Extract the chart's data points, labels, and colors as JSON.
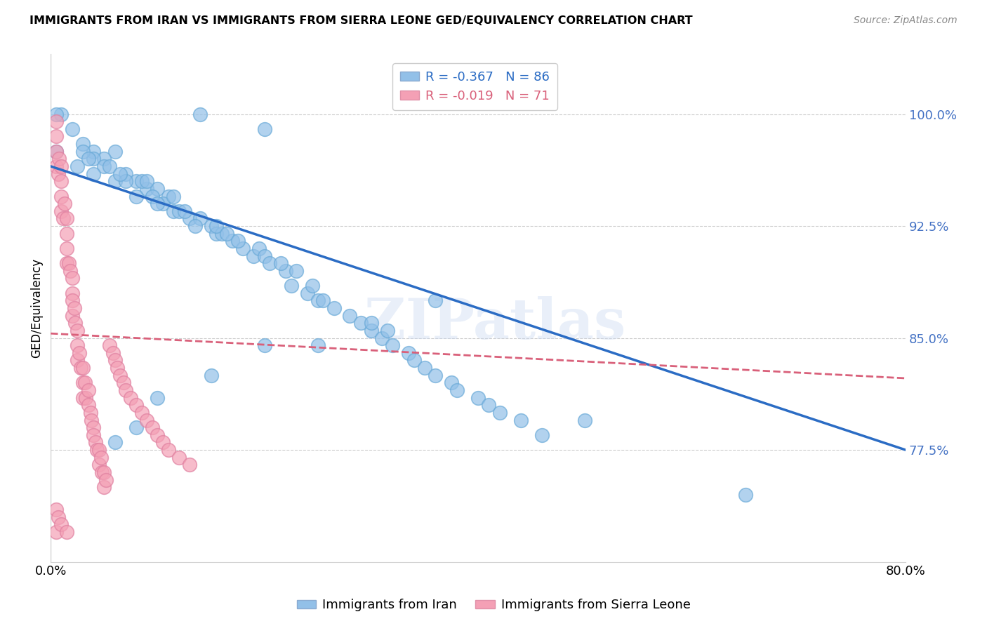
{
  "title": "IMMIGRANTS FROM IRAN VS IMMIGRANTS FROM SIERRA LEONE GED/EQUIVALENCY CORRELATION CHART",
  "source": "Source: ZipAtlas.com",
  "ylabel": "GED/Equivalency",
  "yticks": [
    0.775,
    0.85,
    0.925,
    1.0
  ],
  "ytick_labels": [
    "77.5%",
    "85.0%",
    "92.5%",
    "100.0%"
  ],
  "xlim": [
    0.0,
    0.8
  ],
  "ylim": [
    0.7,
    1.04
  ],
  "iran_R": "-0.367",
  "iran_N": "86",
  "sierra_R": "-0.019",
  "sierra_N": "71",
  "iran_color": "#92C0E8",
  "sierra_color": "#F4A0B5",
  "iran_line_color": "#2B6CC4",
  "sierra_line_color": "#D9607A",
  "watermark": "ZIPatlas",
  "iran_line_x0": 0.0,
  "iran_line_y0": 0.965,
  "iran_line_x1": 0.8,
  "iran_line_y1": 0.775,
  "sierra_line_x0": 0.0,
  "sierra_line_y0": 0.853,
  "sierra_line_x1": 0.8,
  "sierra_line_y1": 0.823,
  "iran_scatter_x": [
    0.01,
    0.005,
    0.14,
    0.2,
    0.005,
    0.02,
    0.04,
    0.03,
    0.06,
    0.05,
    0.04,
    0.03,
    0.025,
    0.05,
    0.04,
    0.035,
    0.07,
    0.06,
    0.055,
    0.08,
    0.07,
    0.065,
    0.09,
    0.085,
    0.08,
    0.1,
    0.095,
    0.09,
    0.11,
    0.105,
    0.1,
    0.115,
    0.12,
    0.115,
    0.13,
    0.125,
    0.14,
    0.135,
    0.15,
    0.155,
    0.16,
    0.155,
    0.17,
    0.165,
    0.18,
    0.175,
    0.19,
    0.195,
    0.2,
    0.205,
    0.22,
    0.215,
    0.23,
    0.225,
    0.24,
    0.245,
    0.25,
    0.255,
    0.265,
    0.28,
    0.29,
    0.3,
    0.31,
    0.315,
    0.32,
    0.335,
    0.34,
    0.35,
    0.36,
    0.375,
    0.38,
    0.4,
    0.41,
    0.42,
    0.44,
    0.46,
    0.36,
    0.3,
    0.25,
    0.2,
    0.15,
    0.1,
    0.08,
    0.06,
    0.65,
    0.5
  ],
  "iran_scatter_y": [
    1.0,
    1.0,
    1.0,
    0.99,
    0.975,
    0.99,
    0.975,
    0.98,
    0.975,
    0.97,
    0.97,
    0.975,
    0.965,
    0.965,
    0.96,
    0.97,
    0.96,
    0.955,
    0.965,
    0.955,
    0.955,
    0.96,
    0.95,
    0.955,
    0.945,
    0.95,
    0.945,
    0.955,
    0.945,
    0.94,
    0.94,
    0.935,
    0.935,
    0.945,
    0.93,
    0.935,
    0.93,
    0.925,
    0.925,
    0.92,
    0.92,
    0.925,
    0.915,
    0.92,
    0.91,
    0.915,
    0.905,
    0.91,
    0.905,
    0.9,
    0.895,
    0.9,
    0.895,
    0.885,
    0.88,
    0.885,
    0.875,
    0.875,
    0.87,
    0.865,
    0.86,
    0.855,
    0.85,
    0.855,
    0.845,
    0.84,
    0.835,
    0.83,
    0.825,
    0.82,
    0.815,
    0.81,
    0.805,
    0.8,
    0.795,
    0.785,
    0.875,
    0.86,
    0.845,
    0.845,
    0.825,
    0.81,
    0.79,
    0.78,
    0.745,
    0.795
  ],
  "sierra_scatter_x": [
    0.005,
    0.005,
    0.005,
    0.005,
    0.007,
    0.008,
    0.01,
    0.01,
    0.01,
    0.01,
    0.012,
    0.013,
    0.015,
    0.015,
    0.015,
    0.015,
    0.017,
    0.018,
    0.02,
    0.02,
    0.02,
    0.02,
    0.022,
    0.023,
    0.025,
    0.025,
    0.025,
    0.027,
    0.028,
    0.03,
    0.03,
    0.03,
    0.032,
    0.033,
    0.035,
    0.035,
    0.037,
    0.038,
    0.04,
    0.04,
    0.042,
    0.043,
    0.045,
    0.045,
    0.047,
    0.048,
    0.05,
    0.05,
    0.052,
    0.055,
    0.058,
    0.06,
    0.062,
    0.065,
    0.068,
    0.07,
    0.075,
    0.08,
    0.085,
    0.09,
    0.095,
    0.1,
    0.105,
    0.11,
    0.12,
    0.13,
    0.005,
    0.005,
    0.007,
    0.01,
    0.015
  ],
  "sierra_scatter_y": [
    0.995,
    0.985,
    0.975,
    0.965,
    0.96,
    0.97,
    0.955,
    0.945,
    0.935,
    0.965,
    0.93,
    0.94,
    0.93,
    0.92,
    0.91,
    0.9,
    0.9,
    0.895,
    0.89,
    0.88,
    0.875,
    0.865,
    0.87,
    0.86,
    0.855,
    0.845,
    0.835,
    0.84,
    0.83,
    0.83,
    0.82,
    0.81,
    0.82,
    0.81,
    0.815,
    0.805,
    0.8,
    0.795,
    0.79,
    0.785,
    0.78,
    0.775,
    0.775,
    0.765,
    0.77,
    0.76,
    0.76,
    0.75,
    0.755,
    0.845,
    0.84,
    0.835,
    0.83,
    0.825,
    0.82,
    0.815,
    0.81,
    0.805,
    0.8,
    0.795,
    0.79,
    0.785,
    0.78,
    0.775,
    0.77,
    0.765,
    0.72,
    0.735,
    0.73,
    0.725,
    0.72
  ]
}
